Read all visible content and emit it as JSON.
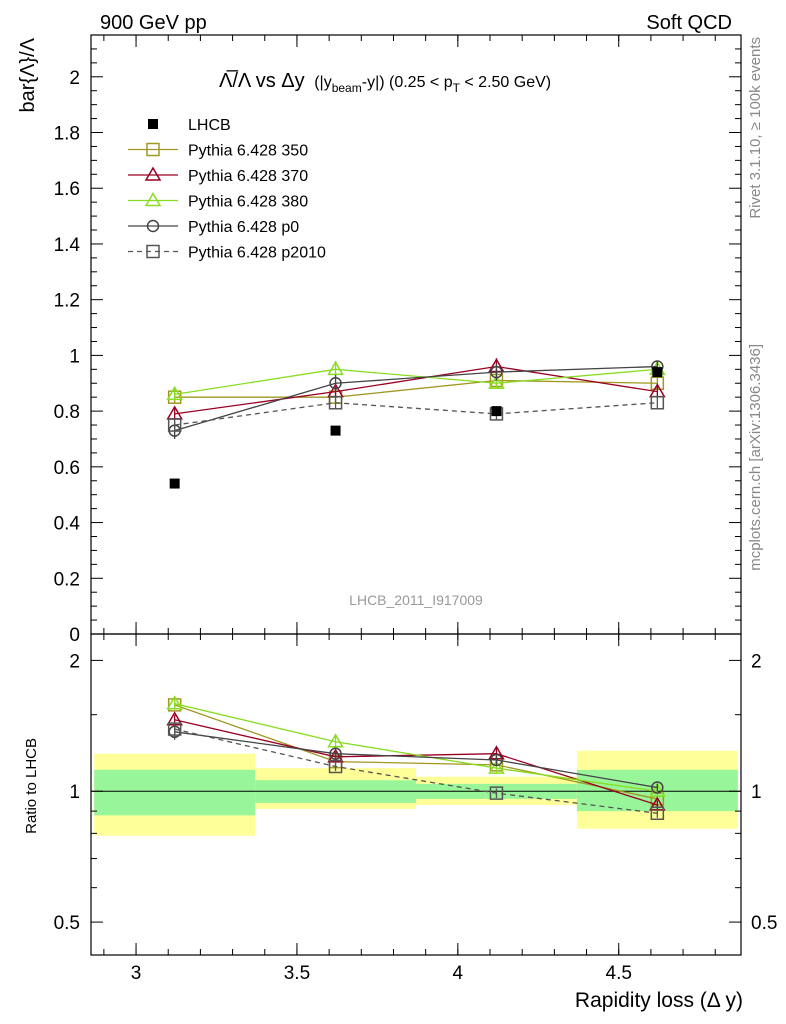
{
  "header": {
    "left": "900 GeV pp",
    "right": "Soft QCD"
  },
  "side_text": {
    "rivet": "Rivet 3.1.10, ≥ 100k events",
    "mcplots": "mcplots.cern.ch [arXiv:1306.3436]"
  },
  "colors": {
    "lhcb": "#000000",
    "p350": "#a09820",
    "p370": "#990022",
    "p380": "#88dd22",
    "p0": "#444444",
    "p2010": "#555555",
    "band_inner": "#99f599",
    "band_outer": "#ffff99",
    "analysis_label": "#999999",
    "side_text": "#888888"
  },
  "chart_data": {
    "type": "scatter",
    "title_main": "Λ̅/Λ vs Δy",
    "title_sub": "(|y",
    "title_sub_beam": "beam",
    "title_sub_rest": "-y|) (0.25 < p",
    "title_sub_T": "T",
    "title_sub_end": " < 2.50 GeV)",
    "ylabel": "bar{Λ}/Λ",
    "ratio_ylabel": "Ratio to LHCB",
    "xlabel": "Rapidity loss (Δ y)",
    "analysis_label": "LHCB_2011_I917009",
    "xlim": [
      2.86,
      4.88
    ],
    "ylim": [
      0,
      2.15
    ],
    "ratio_ylim": [
      0.42,
      2.3
    ],
    "ratio_log": true,
    "x_ticks": [
      "3",
      "3.5",
      "4",
      "4.5"
    ],
    "y_ticks": [
      "0",
      "0.2",
      "0.4",
      "0.6",
      "0.8",
      "1",
      "1.2",
      "1.4",
      "1.6",
      "1.8",
      "2"
    ],
    "ratio_ticks": [
      "0.5",
      "1",
      "2"
    ],
    "x": [
      3.12,
      3.62,
      4.12,
      4.62
    ],
    "x_bins": [
      [
        2.87,
        3.37
      ],
      [
        3.37,
        3.87
      ],
      [
        3.87,
        4.37
      ],
      [
        4.37,
        4.87
      ]
    ],
    "lhcb": {
      "name": "LHCB",
      "values": [
        0.54,
        0.73,
        0.8,
        0.94
      ],
      "band_inner": [
        [
          0.88,
          1.12
        ],
        [
          0.94,
          1.06
        ],
        [
          0.96,
          1.04
        ],
        [
          0.9,
          1.12
        ]
      ],
      "band_outer": [
        [
          0.79,
          1.22
        ],
        [
          0.91,
          1.13
        ],
        [
          0.93,
          1.08
        ],
        [
          0.82,
          1.24
        ]
      ]
    },
    "series": [
      {
        "name": "Pythia 6.428 350",
        "key": "p350",
        "marker": "square-open",
        "dash": false,
        "values": [
          0.85,
          0.85,
          0.91,
          0.9
        ],
        "errors": [
          0.02,
          0.02,
          0.02,
          0.02
        ],
        "ratio": [
          1.58,
          1.17,
          1.15,
          0.96
        ]
      },
      {
        "name": "Pythia 6.428 370",
        "key": "p370",
        "marker": "triangle-open",
        "dash": false,
        "values": [
          0.79,
          0.87,
          0.96,
          0.87
        ],
        "errors": [
          0.02,
          0.02,
          0.03,
          0.02
        ],
        "ratio": [
          1.46,
          1.2,
          1.22,
          0.93
        ]
      },
      {
        "name": "Pythia 6.428 380",
        "key": "p380",
        "marker": "triangle-open",
        "dash": false,
        "values": [
          0.86,
          0.95,
          0.9,
          0.95
        ],
        "errors": [
          0.02,
          0.03,
          0.02,
          0.02
        ],
        "ratio": [
          1.59,
          1.3,
          1.13,
          1.0
        ]
      },
      {
        "name": "Pythia 6.428 p0",
        "key": "p0",
        "marker": "circle-open",
        "dash": false,
        "values": [
          0.73,
          0.9,
          0.94,
          0.96
        ],
        "errors": [
          0.03,
          0.03,
          0.03,
          0.02
        ],
        "ratio": [
          1.37,
          1.22,
          1.18,
          1.02
        ]
      },
      {
        "name": "Pythia 6.428 p2010",
        "key": "p2010",
        "marker": "square-open",
        "dash": true,
        "values": [
          0.75,
          0.83,
          0.79,
          0.83
        ],
        "errors": [
          0.02,
          0.02,
          0.02,
          0.02
        ],
        "ratio": [
          1.39,
          1.14,
          0.99,
          0.89
        ]
      }
    ]
  }
}
